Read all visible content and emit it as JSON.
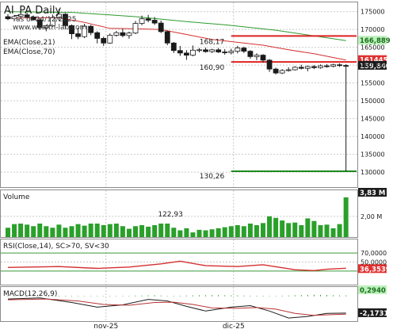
{
  "chart_data": [
    {
      "type": "candlestick",
      "panel": "price",
      "title": "AI_PA Daily",
      "as_of": "as of 24/12/2025",
      "source": "www.wealth-lab.com",
      "indicators": [
        "EMA(Close,21)",
        "EMA(Close,70)"
      ],
      "y_ticks": [
        130000,
        135000,
        140000,
        145000,
        150000,
        155000,
        160000,
        165000,
        170000,
        175000
      ],
      "y_tick_labels": [
        "130000",
        "135000",
        "140000",
        "145000",
        "150000",
        "155000",
        "160000",
        "165000",
        "170000",
        "175000"
      ],
      "ylim": [
        125800,
        177600
      ],
      "x_labels": [
        "nov-25",
        "dic-25"
      ],
      "x_label_index": [
        15,
        35
      ],
      "candles": [
        {
          "o": 173600,
          "h": 174300,
          "l": 172600,
          "c": 173000
        },
        {
          "o": 173000,
          "h": 174100,
          "l": 172300,
          "c": 173600
        },
        {
          "o": 173700,
          "h": 174600,
          "l": 173000,
          "c": 174200
        },
        {
          "o": 174100,
          "h": 174700,
          "l": 173200,
          "c": 173500
        },
        {
          "o": 173500,
          "h": 173900,
          "l": 172500,
          "c": 172700
        },
        {
          "o": 172700,
          "h": 173200,
          "l": 169900,
          "c": 170500
        },
        {
          "o": 170500,
          "h": 171300,
          "l": 169500,
          "c": 171000
        },
        {
          "o": 171000,
          "h": 174200,
          "l": 170700,
          "c": 173300
        },
        {
          "o": 173300,
          "h": 175700,
          "l": 172500,
          "c": 174300
        },
        {
          "o": 174300,
          "h": 174600,
          "l": 170300,
          "c": 171100
        },
        {
          "o": 171100,
          "h": 171400,
          "l": 167300,
          "c": 168800
        },
        {
          "o": 168800,
          "h": 170500,
          "l": 167300,
          "c": 168000
        },
        {
          "o": 168000,
          "h": 171600,
          "l": 167600,
          "c": 170900
        },
        {
          "o": 170900,
          "h": 171300,
          "l": 168400,
          "c": 169100
        },
        {
          "o": 169100,
          "h": 169500,
          "l": 166100,
          "c": 167500
        },
        {
          "o": 167500,
          "h": 168000,
          "l": 165400,
          "c": 166200
        },
        {
          "o": 166200,
          "h": 168900,
          "l": 166000,
          "c": 168400
        },
        {
          "o": 168400,
          "h": 169600,
          "l": 168000,
          "c": 169100
        },
        {
          "o": 169100,
          "h": 170200,
          "l": 167800,
          "c": 168300
        },
        {
          "o": 168300,
          "h": 169400,
          "l": 167400,
          "c": 169000
        },
        {
          "o": 169000,
          "h": 172400,
          "l": 168700,
          "c": 171700
        },
        {
          "o": 171700,
          "h": 173900,
          "l": 171200,
          "c": 173000
        },
        {
          "o": 173000,
          "h": 174100,
          "l": 172000,
          "c": 172600
        },
        {
          "o": 172600,
          "h": 173500,
          "l": 171300,
          "c": 171800
        },
        {
          "o": 171800,
          "h": 172500,
          "l": 169000,
          "c": 169400
        },
        {
          "o": 169400,
          "h": 169700,
          "l": 165600,
          "c": 166200
        },
        {
          "o": 166200,
          "h": 166500,
          "l": 163400,
          "c": 164100
        },
        {
          "o": 164100,
          "h": 165400,
          "l": 162600,
          "c": 163400
        },
        {
          "o": 163400,
          "h": 164200,
          "l": 161500,
          "c": 162800
        },
        {
          "o": 162800,
          "h": 165500,
          "l": 162500,
          "c": 164200
        },
        {
          "o": 164200,
          "h": 164800,
          "l": 163600,
          "c": 164300
        },
        {
          "o": 164300,
          "h": 164900,
          "l": 163500,
          "c": 163800
        },
        {
          "o": 163800,
          "h": 164600,
          "l": 163400,
          "c": 164300
        },
        {
          "o": 164300,
          "h": 164800,
          "l": 163400,
          "c": 163700
        },
        {
          "o": 163700,
          "h": 164500,
          "l": 162900,
          "c": 163500
        },
        {
          "o": 163500,
          "h": 164600,
          "l": 163000,
          "c": 163900
        },
        {
          "o": 163900,
          "h": 165400,
          "l": 163300,
          "c": 164800
        },
        {
          "o": 164800,
          "h": 165200,
          "l": 163400,
          "c": 163900
        },
        {
          "o": 163900,
          "h": 164200,
          "l": 161800,
          "c": 162400
        },
        {
          "o": 162400,
          "h": 163300,
          "l": 161400,
          "c": 162800
        },
        {
          "o": 162800,
          "h": 163100,
          "l": 160700,
          "c": 161400
        },
        {
          "o": 161400,
          "h": 161700,
          "l": 158100,
          "c": 158900
        },
        {
          "o": 158900,
          "h": 159300,
          "l": 157400,
          "c": 157800
        },
        {
          "o": 157800,
          "h": 158900,
          "l": 157500,
          "c": 158500
        },
        {
          "o": 158500,
          "h": 159400,
          "l": 158200,
          "c": 158700
        },
        {
          "o": 158700,
          "h": 159700,
          "l": 158500,
          "c": 159400
        },
        {
          "o": 159400,
          "h": 160100,
          "l": 158800,
          "c": 159100
        },
        {
          "o": 159100,
          "h": 159900,
          "l": 158300,
          "c": 159600
        },
        {
          "o": 159600,
          "h": 160000,
          "l": 158900,
          "c": 159300
        },
        {
          "o": 159300,
          "h": 160200,
          "l": 159000,
          "c": 159800
        },
        {
          "o": 159800,
          "h": 160300,
          "l": 159300,
          "c": 159700
        },
        {
          "o": 159700,
          "h": 160400,
          "l": 159400,
          "c": 160100
        },
        {
          "o": 160100,
          "h": 160500,
          "l": 159500,
          "c": 159900
        },
        {
          "o": 159900,
          "h": 160300,
          "l": 130260,
          "c": 159840
        }
      ],
      "ema21": [
        [
          0,
          173200
        ],
        [
          8,
          173300
        ],
        [
          12,
          172000
        ],
        [
          16,
          170300
        ],
        [
          20,
          170200
        ],
        [
          24,
          170000
        ],
        [
          28,
          168600
        ],
        [
          32,
          167200
        ],
        [
          36,
          166400
        ],
        [
          40,
          165600
        ],
        [
          44,
          164300
        ],
        [
          48,
          163200
        ],
        [
          53,
          161445
        ]
      ],
      "ema70": [
        [
          0,
          175000
        ],
        [
          10,
          174800
        ],
        [
          20,
          173600
        ],
        [
          28,
          172200
        ],
        [
          34,
          171300
        ],
        [
          42,
          169800
        ],
        [
          48,
          168200
        ],
        [
          53,
          166889
        ]
      ],
      "levels": [
        {
          "value": 168170,
          "label": "168,17",
          "color": "#dd2222",
          "start_index": 35
        },
        {
          "value": 160900,
          "label": "160,90",
          "color": "#dd2222",
          "start_index": 35
        },
        {
          "value": 130260,
          "label": "130,26",
          "color": "#1e8a1e",
          "start_index": 35
        }
      ],
      "last_value_tags": [
        {
          "value": 161445,
          "label": "161445",
          "color": "#e03030",
          "text_color": "#ffffff"
        },
        {
          "value": 166889,
          "label": "166,889",
          "color": "#bdf0bd",
          "text_color": "#1a6e1a"
        },
        {
          "value": 159840,
          "label": "159,840",
          "color": "#1c1c1c",
          "text_color": "#ffffff"
        }
      ]
    },
    {
      "type": "bar",
      "panel": "volume",
      "title": "Volume",
      "y_tick_labels": [
        "2,00 M"
      ],
      "y_ticks": [
        2000000
      ],
      "ylim": [
        0,
        3900000
      ],
      "values": [
        900000,
        1250000,
        1300000,
        1200000,
        1050000,
        1300000,
        1050000,
        900000,
        1200000,
        900000,
        1050000,
        1250000,
        1100000,
        1300000,
        1300000,
        1150000,
        1250000,
        1300000,
        1050000,
        800000,
        1050000,
        1150000,
        1000000,
        1150000,
        1300000,
        1300000,
        900000,
        650000,
        850000,
        450000,
        700000,
        650000,
        750000,
        850000,
        950000,
        1050000,
        1150000,
        1050000,
        1300000,
        1150000,
        1350000,
        2000000,
        1850000,
        1600000,
        1350000,
        1400000,
        1150000,
        1800000,
        1550000,
        1150000,
        1200000,
        850000,
        1250000,
        3830000
      ],
      "annotation": {
        "label": "122,93",
        "index": 27
      },
      "last_value_tag": {
        "label": "3,83 M",
        "color": "#1c1c1c",
        "text_color": "#ffffff"
      }
    },
    {
      "type": "line",
      "panel": "rsi",
      "title": "RSI(Close,14), SC>70, SV<30",
      "y_tick_labels": [
        "70,0000",
        "50,0000"
      ],
      "y_ticks": [
        70,
        50
      ],
      "ylim": [
        0,
        100
      ],
      "series": [
        {
          "values": [
            [
              0,
              38
            ],
            [
              8,
              40
            ],
            [
              14,
              36
            ],
            [
              19,
              39
            ],
            [
              24,
              46
            ],
            [
              27,
              52
            ],
            [
              31,
              42
            ],
            [
              36,
              40
            ],
            [
              40,
              44
            ],
            [
              45,
              33
            ],
            [
              48,
              31
            ],
            [
              50,
              34
            ],
            [
              53,
              36.35
            ]
          ]
        }
      ],
      "last_value_tag": {
        "label": "36,3539",
        "color": "#e03030",
        "text_color": "#ffffff"
      }
    },
    {
      "type": "line",
      "panel": "macd",
      "title": "MACD(12,26,9)",
      "ylim": [
        -3.2,
        1.2
      ],
      "series": [
        {
          "values": [
            [
              0,
              -0.35
            ],
            [
              5,
              -0.2
            ],
            [
              10,
              -0.8
            ],
            [
              14,
              -1.4
            ],
            [
              18,
              -1.1
            ],
            [
              22,
              -0.4
            ],
            [
              25,
              -0.6
            ],
            [
              28,
              -1.3
            ],
            [
              31,
              -1.9
            ],
            [
              35,
              -1.4
            ],
            [
              38,
              -1.2
            ],
            [
              41,
              -1.9
            ],
            [
              44,
              -2.8
            ],
            [
              47,
              -2.6
            ],
            [
              50,
              -2.2
            ],
            [
              53,
              -2.17
            ]
          ],
          "color": "#1c1c1c"
        },
        {
          "values": [
            [
              0,
              -0.45
            ],
            [
              6,
              -0.35
            ],
            [
              11,
              -0.6
            ],
            [
              15,
              -1.05
            ],
            [
              19,
              -1.15
            ],
            [
              23,
              -0.8
            ],
            [
              26,
              -0.75
            ],
            [
              29,
              -1.05
            ],
            [
              32,
              -1.5
            ],
            [
              36,
              -1.55
            ],
            [
              39,
              -1.45
            ],
            [
              42,
              -1.65
            ],
            [
              45,
              -2.2
            ],
            [
              48,
              -2.45
            ],
            [
              51,
              -2.35
            ],
            [
              53,
              -2.3
            ]
          ],
          "color": "#b83232"
        }
      ],
      "histogram": [
        0.1,
        0.12,
        0.14,
        0.14,
        0.12,
        0.1,
        0.08,
        0.08,
        0.08,
        0.06,
        0.06,
        0.06,
        0.06,
        0.06,
        0.06,
        0.06,
        0.06,
        0.06,
        0.06,
        0.06,
        0.1,
        0.1,
        0.12,
        0.14,
        0.1,
        0.06,
        0.06,
        0.08,
        0.1,
        0.12,
        0.14,
        0.14,
        0.16,
        0.16,
        0.14,
        0.12,
        0.12,
        0.1,
        0.08,
        0.08,
        0.08,
        0.06,
        0.06,
        0.08,
        0.1,
        0.14,
        0.16,
        0.18,
        0.2,
        0.18,
        0.16,
        0.14,
        0.12,
        0.12
      ],
      "last_value_tags": [
        {
          "label": "0,2940",
          "color": "#bdf0bd",
          "text_color": "#1a6e1a"
        },
        {
          "label": "-2,1731",
          "color": "#1c1c1c",
          "text_color": "#ffffff"
        }
      ]
    }
  ]
}
